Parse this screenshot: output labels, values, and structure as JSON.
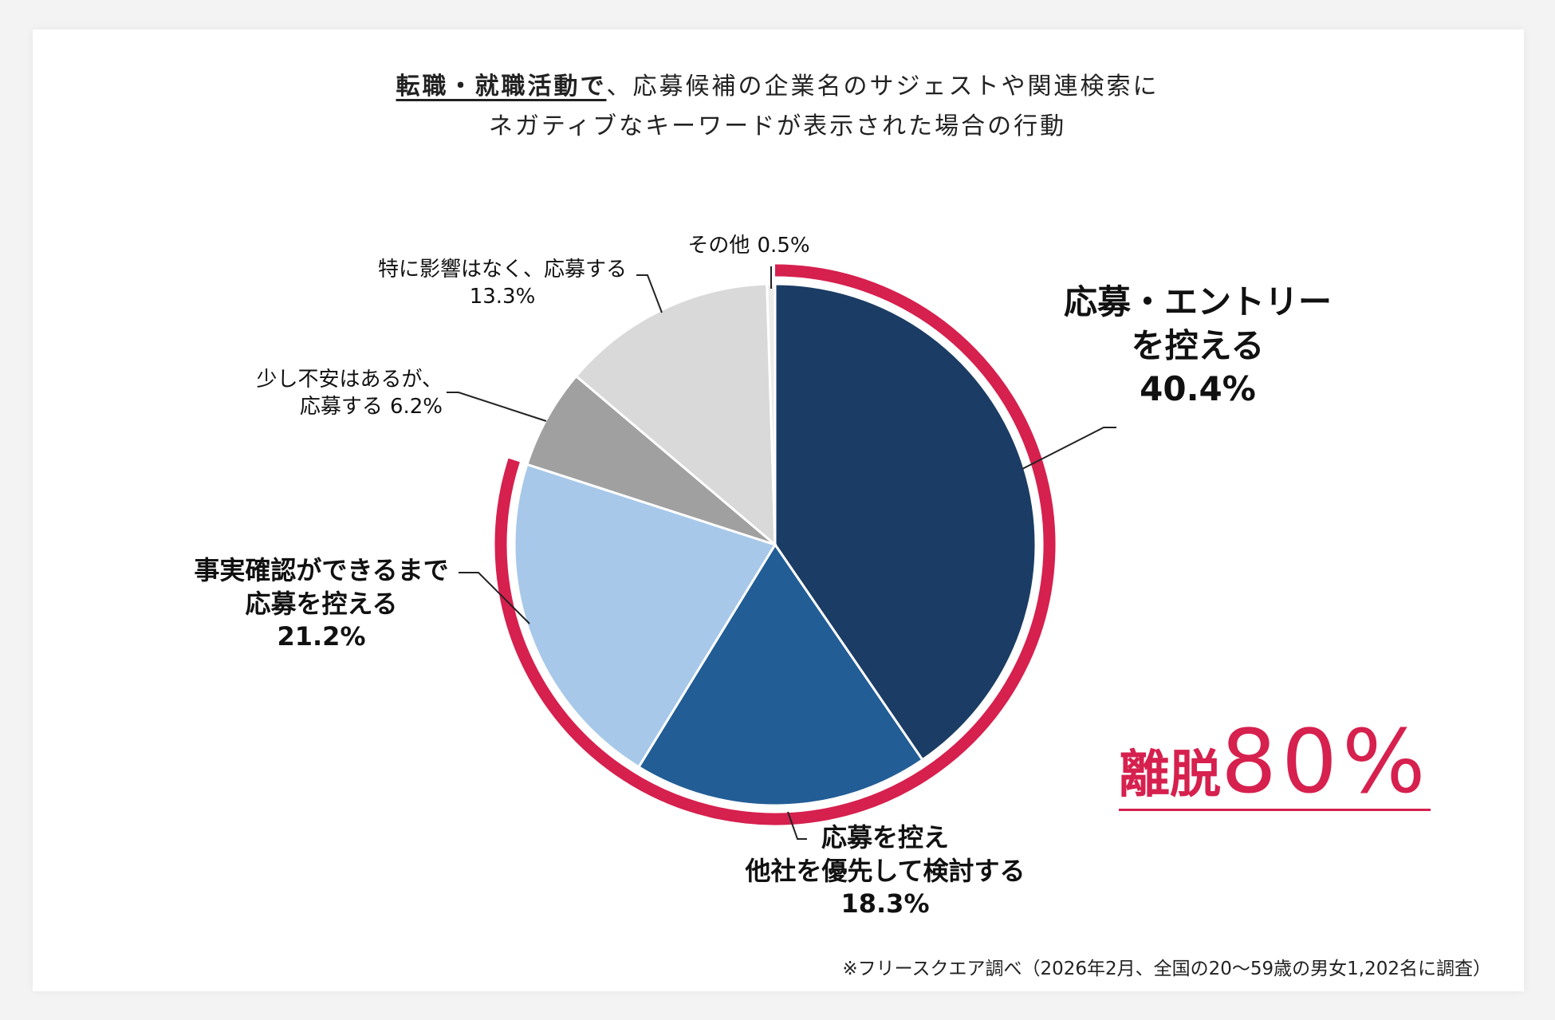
{
  "chart_data": {
    "type": "pie",
    "title_emphasis": "転職・就職活動で",
    "title": "、応募候補の企業名のサジェストや関連検索に\nネガティブなキーワードが表示された場合の行動",
    "categories": [
      "応募・エントリー\nを控える",
      "応募を控え\n他社を優先して検討する",
      "事実確認ができるまで\n応募を控える",
      "少し不安はあるが、\n応募する",
      "特に影響はなく、応募する",
      "その他"
    ],
    "values": [
      40.4,
      18.3,
      21.2,
      6.2,
      13.3,
      0.5
    ],
    "value_labels": [
      "40.4%",
      "18.3%",
      "21.2%",
      "6.2%",
      "13.3%",
      "0.5%"
    ],
    "colors": [
      "#1b3c64",
      "#225d96",
      "#a7c8e9",
      "#a0a0a0",
      "#d9d9d9",
      "#ececec"
    ],
    "highlight_label": "離脱",
    "highlight_value": 80,
    "highlight_value_label": "80%",
    "note": "※フリースクエア調べ（2026年2月、全国の20～59歳の男女1,202名に調査）"
  }
}
